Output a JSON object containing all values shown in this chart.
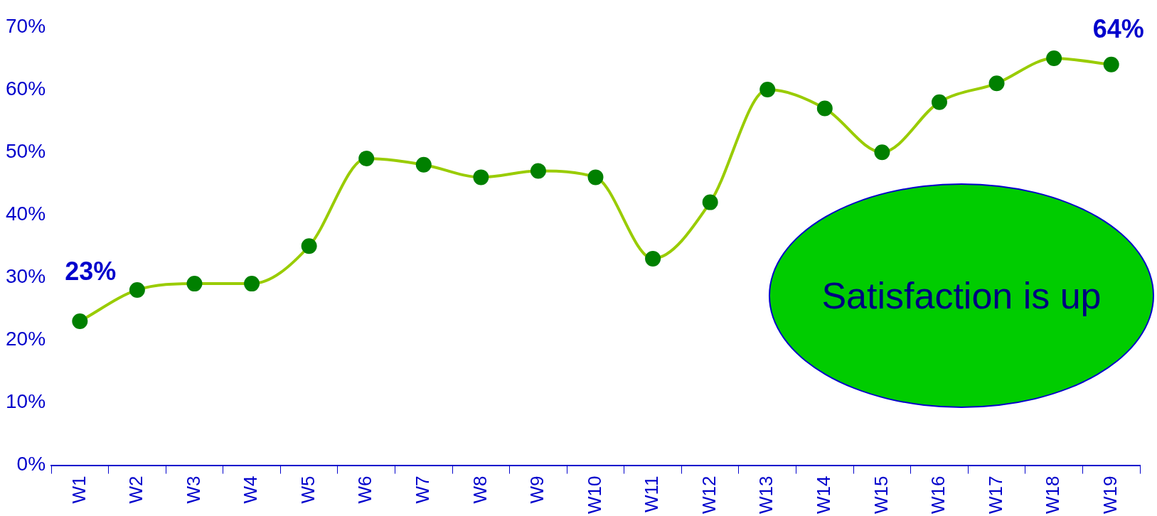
{
  "chart_data": {
    "type": "line",
    "categories": [
      "W1",
      "W2",
      "W3",
      "W4",
      "W5",
      "W6",
      "W7",
      "W8",
      "W9",
      "W10",
      "W11",
      "W12",
      "W13",
      "W14",
      "W15",
      "W16",
      "W17",
      "W18",
      "W19"
    ],
    "series": [
      {
        "color": "#99cc00",
        "values": [
          23,
          28,
          29,
          29,
          35,
          49,
          48,
          46,
          47,
          46,
          33,
          42,
          60,
          57,
          50,
          58,
          61,
          65,
          64
        ]
      }
    ],
    "marker": "circle",
    "ylim": [
      0,
      70
    ],
    "yticks": [
      {
        "value": 0,
        "label": "0%"
      },
      {
        "value": 10,
        "label": "10%"
      },
      {
        "value": 20,
        "label": "20%"
      },
      {
        "value": 30,
        "label": "30%"
      },
      {
        "value": 40,
        "label": "40%"
      },
      {
        "value": 50,
        "label": "50%"
      },
      {
        "value": 60,
        "label": "60%"
      },
      {
        "value": 70,
        "label": "70%"
      }
    ],
    "grid": false,
    "legend": false,
    "annotations": [
      {
        "text": "23%",
        "x": "W1",
        "y": 23
      },
      {
        "text": "64%",
        "x": "W19",
        "y": 64
      },
      "Satisfaction is up"
    ]
  }
}
